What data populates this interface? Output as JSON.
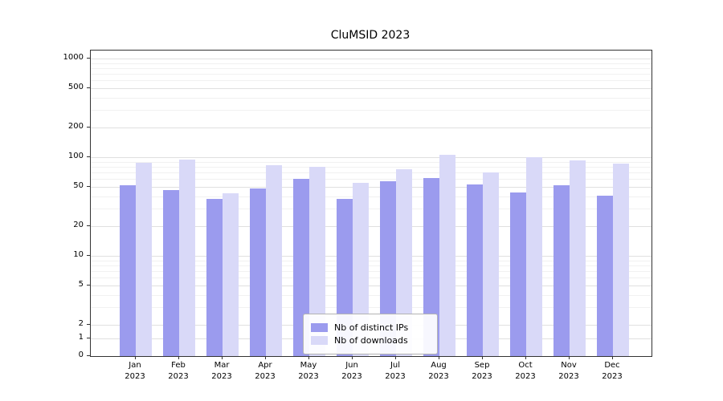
{
  "title": "CluMSID 2023",
  "chart_data": {
    "type": "bar",
    "title": "CluMSID 2023",
    "categories": [
      "Jan",
      "Feb",
      "Mar",
      "Apr",
      "May",
      "Jun",
      "Jul",
      "Aug",
      "Sep",
      "Oct",
      "Nov",
      "Dec"
    ],
    "category_year": "2023",
    "series": [
      {
        "name": "Nb of distinct IPs",
        "color": "#9b9bee",
        "values": [
          52,
          46,
          38,
          48,
          60,
          38,
          57,
          61,
          53,
          44,
          52,
          41
        ]
      },
      {
        "name": "Nb of downloads",
        "color": "#d9d9f8",
        "values": [
          88,
          95,
          43,
          83,
          80,
          55,
          76,
          105,
          70,
          100,
          93,
          86
        ]
      }
    ],
    "yscale": "symlog",
    "yticks": [
      0,
      1,
      2,
      5,
      10,
      20,
      50,
      100,
      200,
      500,
      1000
    ],
    "minor_yticks": [
      3,
      4,
      6,
      7,
      8,
      9,
      30,
      40,
      60,
      70,
      80,
      90,
      300,
      400,
      600,
      700,
      800,
      900
    ],
    "ylim": [
      0,
      1200
    ],
    "xlabel": "",
    "ylabel": "",
    "grid": true,
    "legend_position": "lower center"
  }
}
